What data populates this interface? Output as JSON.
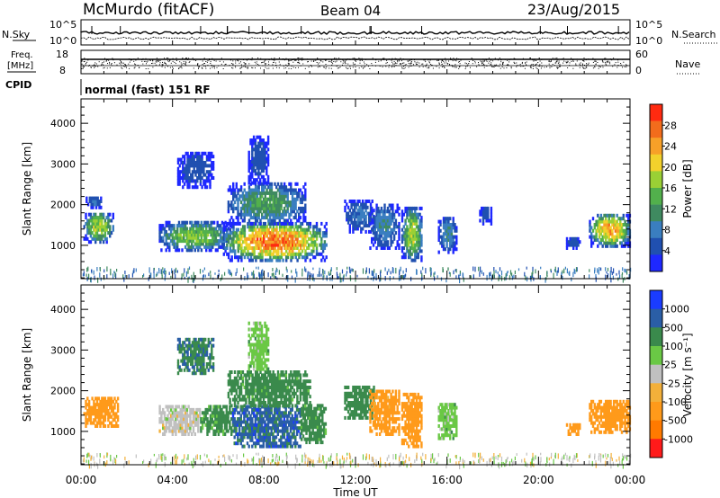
{
  "header": {
    "station": "McMurdo (fitACF)",
    "beam": "Beam 04",
    "date": "23/Aug/2015"
  },
  "panels": {
    "noise": {
      "left_label": "N.Sky",
      "right_label": "N.Search",
      "left_ticks": [
        "10^5",
        "10^0"
      ],
      "right_ticks": [
        "10^5",
        "10^0"
      ]
    },
    "freq": {
      "left_label_1": "Freq.",
      "left_label_2": "[MHz]",
      "right_label": "Nave",
      "left_ticks": [
        "18",
        "8"
      ],
      "right_ticks": [
        "60",
        "0"
      ]
    },
    "cpid": {
      "left_label": "CPID",
      "text": "normal (fast) 151 RF"
    }
  },
  "colors": {
    "power": [
      "#1e28ff",
      "#2050b0",
      "#3a7ec0",
      "#3f8a60",
      "#52b04c",
      "#9ad035",
      "#f2d12c",
      "#f7a028",
      "#f26c1c",
      "#ff2a10"
    ],
    "velocity": [
      "#ff1a1a",
      "#ff7a00",
      "#ff9a1a",
      "#f3b03a",
      "#c0c0c0",
      "#6ac845",
      "#3a8a4c",
      "#2a5ea6",
      "#1a3cff"
    ]
  },
  "chart_data": [
    {
      "type": "heatmap",
      "title": "",
      "ylabel": "Slant Range [km]",
      "xlabel": "",
      "x_ticks": [
        "00:00",
        "04:00",
        "08:00",
        "12:00",
        "16:00",
        "20:00",
        "00:00"
      ],
      "x_range_hours": [
        0,
        24
      ],
      "ylim": [
        180,
        4600
      ],
      "y_ticks": [
        1000,
        2000,
        3000,
        4000
      ],
      "colorbar": {
        "label": "Power [dB]",
        "ticks": [
          4,
          8,
          12,
          16,
          20,
          24,
          28
        ],
        "range": [
          0,
          32
        ]
      },
      "regions": [
        {
          "t0": 0.1,
          "t1": 1.4,
          "r0": 1050,
          "r1": 1800,
          "peak": 20
        },
        {
          "t0": 0.2,
          "t1": 0.9,
          "r0": 1900,
          "r1": 2200,
          "peak": 8
        },
        {
          "t0": 3.4,
          "t1": 6.5,
          "r0": 850,
          "r1": 1550,
          "peak": 18
        },
        {
          "t0": 6.2,
          "t1": 10.7,
          "r0": 600,
          "r1": 1550,
          "peak": 30
        },
        {
          "t0": 6.4,
          "t1": 9.8,
          "r0": 1500,
          "r1": 2500,
          "peak": 14
        },
        {
          "t0": 4.2,
          "t1": 5.8,
          "r0": 2400,
          "r1": 3300,
          "peak": 6
        },
        {
          "t0": 7.3,
          "t1": 8.2,
          "r0": 2500,
          "r1": 3700,
          "peak": 6
        },
        {
          "t0": 11.5,
          "t1": 12.8,
          "r0": 1300,
          "r1": 2100,
          "peak": 8
        },
        {
          "t0": 12.6,
          "t1": 13.9,
          "r0": 900,
          "r1": 2000,
          "peak": 10
        },
        {
          "t0": 14.0,
          "t1": 14.9,
          "r0": 600,
          "r1": 1900,
          "peak": 20
        },
        {
          "t0": 15.6,
          "t1": 16.4,
          "r0": 800,
          "r1": 1700,
          "peak": 10
        },
        {
          "t0": 17.4,
          "t1": 17.9,
          "r0": 1500,
          "r1": 1950,
          "peak": 6
        },
        {
          "t0": 21.2,
          "t1": 21.8,
          "r0": 900,
          "r1": 1200,
          "peak": 6
        },
        {
          "t0": 22.2,
          "t1": 24.0,
          "r0": 950,
          "r1": 1750,
          "peak": 26
        }
      ]
    },
    {
      "type": "heatmap",
      "title": "",
      "ylabel": "Slant Range [km]",
      "xlabel": "Time UT",
      "x_ticks": [
        "00:00",
        "04:00",
        "08:00",
        "12:00",
        "16:00",
        "20:00",
        "00:00"
      ],
      "x_range_hours": [
        0,
        24
      ],
      "ylim": [
        180,
        4600
      ],
      "y_ticks": [
        1000,
        2000,
        3000,
        4000
      ],
      "colorbar": {
        "label": "Velocity [m s⁻¹]",
        "ticks": [
          "1000",
          "500",
          "100",
          "25",
          "-25",
          "-100",
          "-500",
          "-1000"
        ]
      },
      "regions": [
        {
          "t0": 0.1,
          "t1": 1.6,
          "r0": 1100,
          "r1": 1800,
          "vel": -250
        },
        {
          "t0": 3.4,
          "t1": 5.2,
          "r0": 900,
          "r1": 1600,
          "vel": 0
        },
        {
          "t0": 5.2,
          "t1": 6.6,
          "r0": 900,
          "r1": 1600,
          "vel": 150
        },
        {
          "t0": 6.6,
          "t1": 9.6,
          "r0": 600,
          "r1": 1650,
          "vel": 700
        },
        {
          "t0": 9.6,
          "t1": 10.7,
          "r0": 700,
          "r1": 1650,
          "vel": 200
        },
        {
          "t0": 6.4,
          "t1": 10.0,
          "r0": 1600,
          "r1": 2500,
          "vel": 200
        },
        {
          "t0": 4.2,
          "t1": 5.8,
          "r0": 2400,
          "r1": 3300,
          "vel": 400
        },
        {
          "t0": 7.3,
          "t1": 8.2,
          "r0": 2500,
          "r1": 3700,
          "vel": 60
        },
        {
          "t0": 11.5,
          "t1": 12.8,
          "r0": 1300,
          "r1": 2100,
          "vel": 300
        },
        {
          "t0": 12.6,
          "t1": 13.9,
          "r0": 900,
          "r1": 2000,
          "vel": -200
        },
        {
          "t0": 14.0,
          "t1": 14.9,
          "r0": 600,
          "r1": 1900,
          "vel": -250
        },
        {
          "t0": 15.6,
          "t1": 16.4,
          "r0": 800,
          "r1": 1700,
          "vel": 60
        },
        {
          "t0": 21.2,
          "t1": 21.8,
          "r0": 900,
          "r1": 1200,
          "vel": -250
        },
        {
          "t0": 22.2,
          "t1": 24.0,
          "r0": 950,
          "r1": 1750,
          "vel": -250
        }
      ]
    }
  ]
}
